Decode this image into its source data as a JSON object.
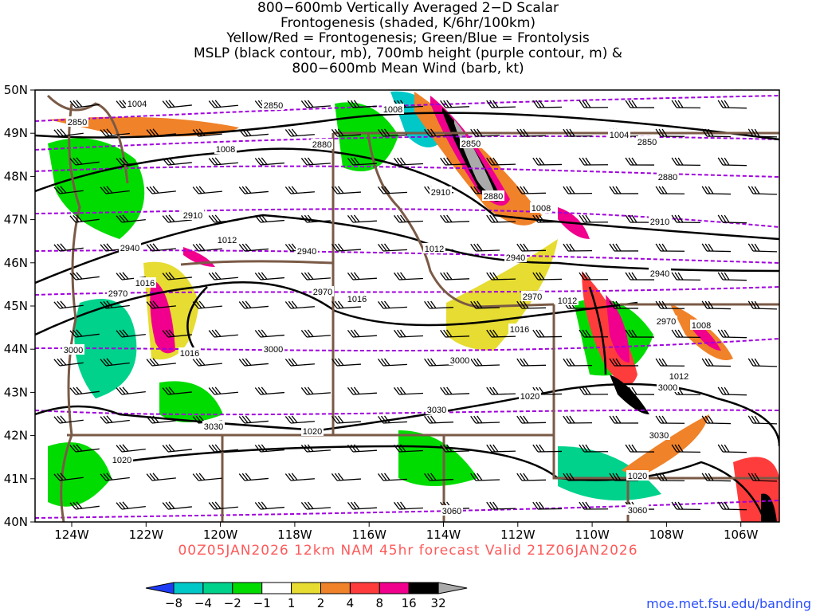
{
  "title": {
    "lines": [
      "800−600mb Vertically Averaged 2−D Scalar",
      "Frontogenesis (shaded, K/6hr/100km)",
      "Yellow/Red = Frontogenesis;  Green/Blue = Frontolysis",
      "MSLP (black contour, mb), 700mb height (purple contour, m) &",
      "800−600mb Mean Wind (barb, kt)"
    ]
  },
  "axes": {
    "lat_labels": [
      "50N",
      "49N",
      "48N",
      "47N",
      "46N",
      "45N",
      "44N",
      "43N",
      "42N",
      "41N",
      "40N"
    ],
    "lon_labels": [
      "124W",
      "122W",
      "120W",
      "118W",
      "116W",
      "114W",
      "112W",
      "110W",
      "108W",
      "106W"
    ]
  },
  "forecast_line": "00Z05JAN2026  12km NAM 45hr forecast Valid 21Z06JAN2026",
  "credit": "moe.met.fsu.edu/banding",
  "colorbar": {
    "ticks": [
      "−8",
      "−4",
      "−2",
      "−1",
      "1",
      "2",
      "4",
      "8",
      "16",
      "32"
    ],
    "colors": [
      "#1f3cf5",
      "#00c8c8",
      "#00d28c",
      "#00dc00",
      "#ffffff",
      "#e6dc32",
      "#f0822a",
      "#ff3c3c",
      "#f0008c",
      "#000000",
      "#aaaaaa"
    ]
  },
  "colors": {
    "mslp": "#000000",
    "height": "#a000dc",
    "borders": "#7a5a46"
  },
  "mslp_labels": [
    "1004",
    "1008",
    "1004",
    "1008",
    "1012",
    "1008",
    "1012",
    "1016",
    "1016",
    "1016",
    "1012",
    "1008",
    "1016",
    "1012",
    "1020",
    "1020",
    "1020",
    "1020"
  ],
  "height_labels": [
    "2850",
    "2850",
    "2850",
    "2880",
    "2850",
    "2880",
    "2910",
    "2880",
    "2910",
    "2910",
    "2940",
    "2940",
    "2940",
    "2940",
    "2970",
    "2970",
    "2970",
    "2970",
    "3000",
    "3000",
    "3000",
    "3000",
    "3030",
    "3030",
    "3030",
    "3060",
    "3060"
  ]
}
